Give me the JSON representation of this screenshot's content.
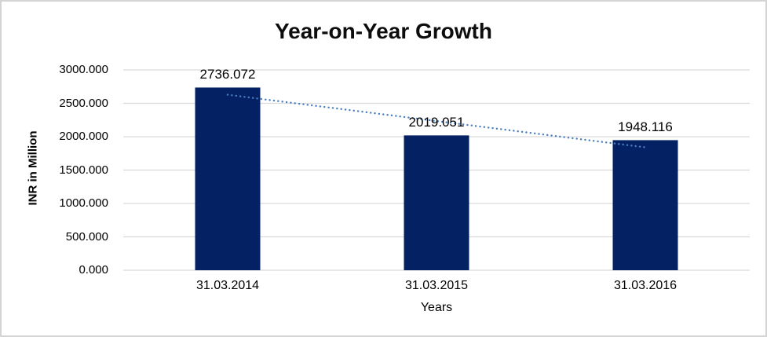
{
  "chart_data": {
    "type": "bar",
    "title": "Year-on-Year Growth",
    "xlabel": "Years",
    "ylabel": "INR in Million",
    "categories": [
      "31.03.2014",
      "31.03.2015",
      "31.03.2016"
    ],
    "values": [
      2736.072,
      2019.051,
      1948.116
    ],
    "data_labels": [
      "2736.072",
      "2019.051",
      "1948.116"
    ],
    "ylim": [
      0,
      3000
    ],
    "yticks": [
      {
        "value": 0,
        "label": "0.000"
      },
      {
        "value": 500,
        "label": "500.000"
      },
      {
        "value": 1000,
        "label": "1000.000"
      },
      {
        "value": 1500,
        "label": "1500.000"
      },
      {
        "value": 2000,
        "label": "2000.000"
      },
      {
        "value": 2500,
        "label": "2500.000"
      },
      {
        "value": 3000,
        "label": "3000.000"
      }
    ],
    "grid": true,
    "legend": "none",
    "trendline": {
      "type": "linear",
      "style": "dotted"
    },
    "colors": {
      "bar": "#032163",
      "trendline": "#4a7ebf",
      "gridline": "#d9d9d9",
      "text": "#000000",
      "border": "#d4d4d4",
      "background": "#ffffff"
    }
  }
}
